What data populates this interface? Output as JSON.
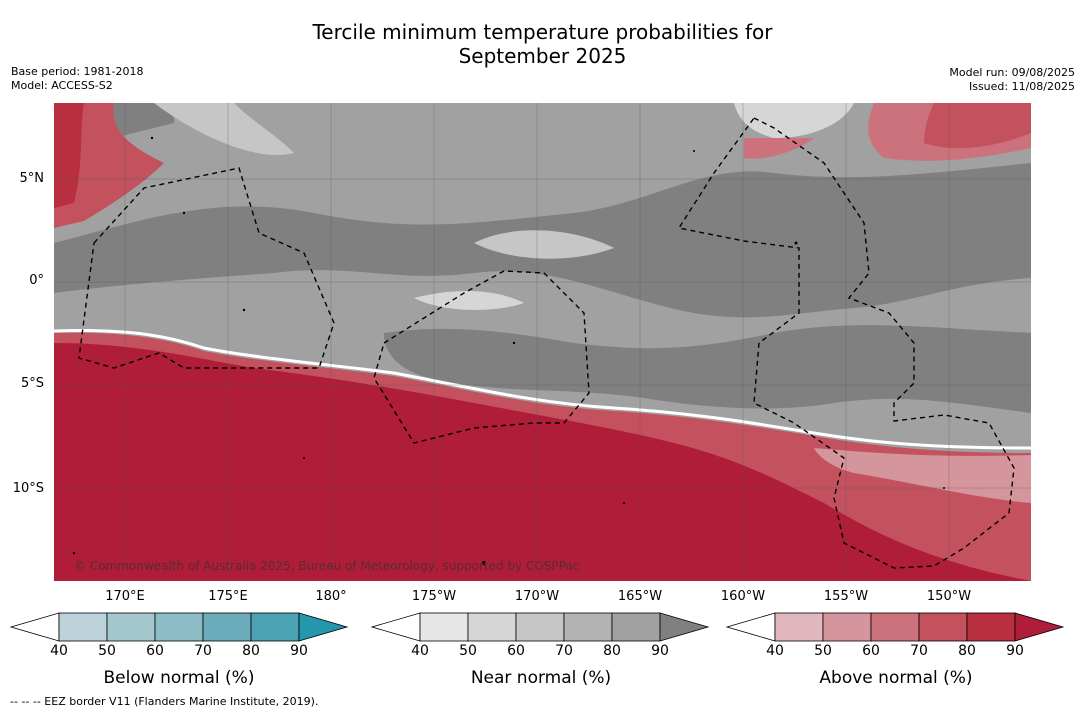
{
  "title_line1": "Tercile minimum temperature probabilities for",
  "title_line2": "September 2025",
  "base_period": "Base period: 1981-2018",
  "model": "Model: ACCESS-S2",
  "model_run": "Model run: 09/08/2025",
  "issued": "Issued: 11/08/2025",
  "lat_labels": [
    "5°N",
    "0°",
    "5°S",
    "10°S"
  ],
  "lon_labels": [
    "170°E",
    "175°E",
    "180°",
    "175°W",
    "170°W",
    "165°W",
    "160°W",
    "155°W",
    "150°W"
  ],
  "copyright": "© Commonwealth of Australia 2025, Bureau of Meteorology, supported by COSPPac",
  "colorbars": [
    {
      "title": "Below normal (%)",
      "ticks": [
        "40",
        "50",
        "60",
        "70",
        "80",
        "90"
      ],
      "colors": [
        "#ffffff",
        "#bcd3da",
        "#a5c8cf",
        "#8cbcc6",
        "#6cacbb",
        "#4aa2b2",
        "#2597ad"
      ]
    },
    {
      "title": "Near normal (%)",
      "ticks": [
        "40",
        "50",
        "60",
        "70",
        "80",
        "90"
      ],
      "colors": [
        "#ffffff",
        "#e6e6e6",
        "#d6d6d6",
        "#c6c6c6",
        "#b3b3b3",
        "#a1a1a1",
        "#808080"
      ]
    },
    {
      "title": "Above normal (%)",
      "ticks": [
        "40",
        "50",
        "60",
        "70",
        "80",
        "90"
      ],
      "colors": [
        "#ffffff",
        "#e0b8bd",
        "#d5959c",
        "#cc727c",
        "#c3525e",
        "#b8303f",
        "#b01d38"
      ]
    }
  ],
  "footnote": "--  --  -- EEZ border V11 (Flanders Marine Institute, 2019)."
}
